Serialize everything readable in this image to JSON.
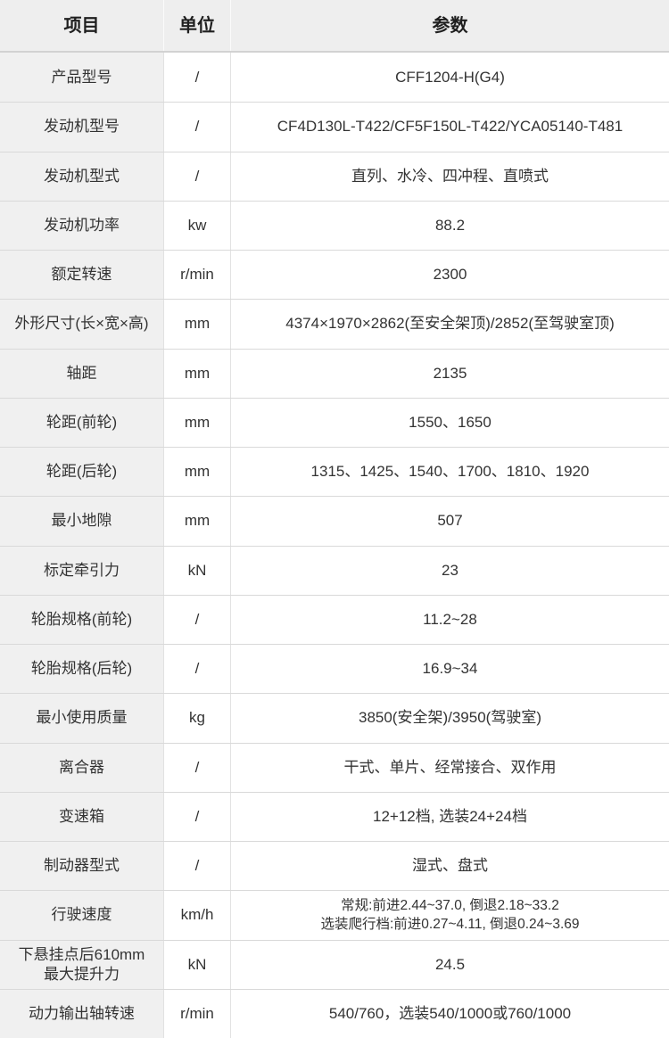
{
  "colors": {
    "header_bg": "#eeeeee",
    "item_column_bg": "#f0f0f0",
    "row_border": "#d9d9d9",
    "column_border": "#e2e2e2",
    "text": "#333333"
  },
  "table": {
    "headers": [
      "项目",
      "单位",
      "参数"
    ],
    "rows": [
      {
        "item": "产品型号",
        "unit": "/",
        "value": "CFF1204-H(G4)"
      },
      {
        "item": "发动机型号",
        "unit": "/",
        "value": "CF4D130L-T422/CF5F150L-T422/YCA05140-T481"
      },
      {
        "item": "发动机型式",
        "unit": "/",
        "value": "直列、水冷、四冲程、直喷式"
      },
      {
        "item": "发动机功率",
        "unit": "kw",
        "value": "88.2"
      },
      {
        "item": "额定转速",
        "unit": "r/min",
        "value": "2300"
      },
      {
        "item": "外形尺寸(长×宽×高)",
        "unit": "mm",
        "value": "4374×1970×2862(至安全架顶)/2852(至驾驶室顶)"
      },
      {
        "item": "轴距",
        "unit": "mm",
        "value": "2135"
      },
      {
        "item": "轮距(前轮)",
        "unit": "mm",
        "value": "1550、1650"
      },
      {
        "item": "轮距(后轮)",
        "unit": "mm",
        "value": "1315、1425、1540、1700、1810、1920"
      },
      {
        "item": "最小地隙",
        "unit": "mm",
        "value": "507"
      },
      {
        "item": "标定牵引力",
        "unit": "kN",
        "value": "23"
      },
      {
        "item": "轮胎规格(前轮)",
        "unit": "/",
        "value": "11.2~28"
      },
      {
        "item": "轮胎规格(后轮)",
        "unit": "/",
        "value": "16.9~34"
      },
      {
        "item": "最小使用质量",
        "unit": "kg",
        "value": "3850(安全架)/3950(驾驶室)"
      },
      {
        "item": "离合器",
        "unit": "/",
        "value": "干式、单片、经常接合、双作用"
      },
      {
        "item": "变速箱",
        "unit": "/",
        "value": "12+12档, 选装24+24档"
      },
      {
        "item": "制动器型式",
        "unit": "/",
        "value": "湿式、盘式"
      },
      {
        "item": "行驶速度",
        "unit": "km/h",
        "value": "常规:前进2.44~37.0, 倒退2.18~33.2\n选装爬行档:前进0.27~4.11, 倒退0.24~3.69"
      },
      {
        "item": "下悬挂点后610mm\n最大提升力",
        "unit": "kN",
        "value": "24.5"
      },
      {
        "item": "动力输出轴转速",
        "unit": "r/min",
        "value": "540/760，选装540/1000或760/1000"
      }
    ]
  }
}
